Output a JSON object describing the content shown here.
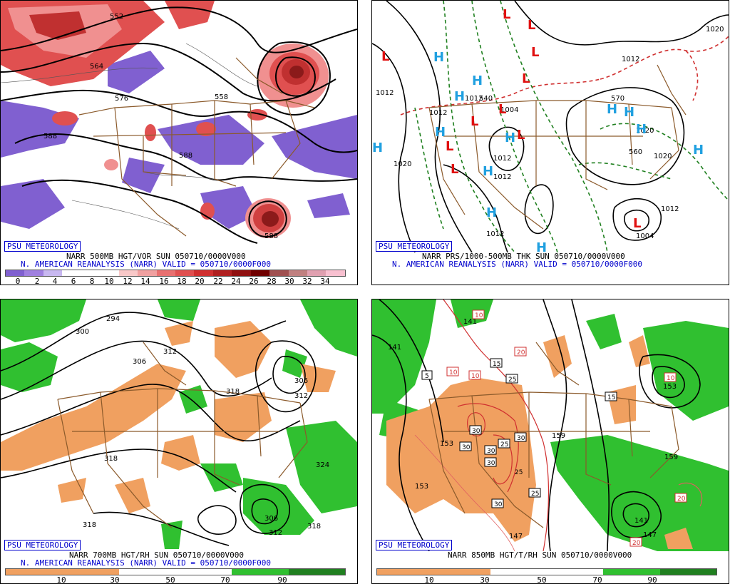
{
  "badge": "PSU METEOROLOGY",
  "reanalysis_line": "N. AMERICAN REANALYSIS (NARR) VALID = 050710/0000F000",
  "colors": {
    "purple": "#8060d0",
    "red": "#e05050",
    "orange": "#f0a060",
    "green": "#30c030",
    "land_border": "#8b5a2b",
    "contour": "#000000",
    "high_marker": "#20a0e0",
    "low_marker": "#e01010"
  },
  "panels": {
    "vort500": {
      "product": "NARR 500MB HGT/VOR SUN 050710/0000V000",
      "colorbar_labels": [
        "0",
        "2",
        "4",
        "6",
        "8",
        "10",
        "12",
        "14",
        "16",
        "18",
        "20",
        "22",
        "24",
        "26",
        "28",
        "30",
        "32",
        "34"
      ],
      "contour_labels": [
        "552",
        "564",
        "558",
        "588",
        "588",
        "576",
        "588"
      ]
    },
    "mslp_thk": {
      "product": "NARR PRS/1000-500MB THK SUN 050710/0000V000",
      "contour_labels": [
        "1020",
        "1012",
        "1012",
        "1012",
        "1004",
        "1012",
        "1012",
        "1020",
        "1012",
        "1020",
        "1012",
        "1004",
        "1012",
        "1020",
        "540",
        "570",
        "560"
      ],
      "highs": [
        "H",
        "H",
        "H",
        "H",
        "H",
        "H",
        "H",
        "H",
        "H",
        "H",
        "H",
        "H",
        "H"
      ],
      "lows": [
        "L",
        "L",
        "L",
        "L",
        "L",
        "L",
        "L",
        "L",
        "L",
        "L",
        "L"
      ]
    },
    "rh700": {
      "product": "NARR 700MB HGT/RH SUN 050710/0000V000",
      "colorbar_labels": [
        "10",
        "30",
        "50",
        "70",
        "90"
      ],
      "contour_labels": [
        "294",
        "300",
        "306",
        "312",
        "318",
        "306",
        "312",
        "318",
        "324",
        "318",
        "306",
        "312",
        "318"
      ]
    },
    "t850": {
      "product": "NARR 850MB HGT/T/RH SUN 050710/0000V000",
      "colorbar_labels": [
        "10",
        "30",
        "50",
        "70",
        "90"
      ],
      "contour_labels": [
        "141",
        "141",
        "153",
        "159",
        "153",
        "147",
        "147",
        "141",
        "153",
        "159"
      ],
      "temp_labels": [
        "10",
        "5",
        "10",
        "10",
        "15",
        "20",
        "25",
        "30",
        "30",
        "30",
        "25",
        "30",
        "30",
        "25",
        "30",
        "15",
        "10",
        "20",
        "20",
        "25"
      ]
    }
  }
}
